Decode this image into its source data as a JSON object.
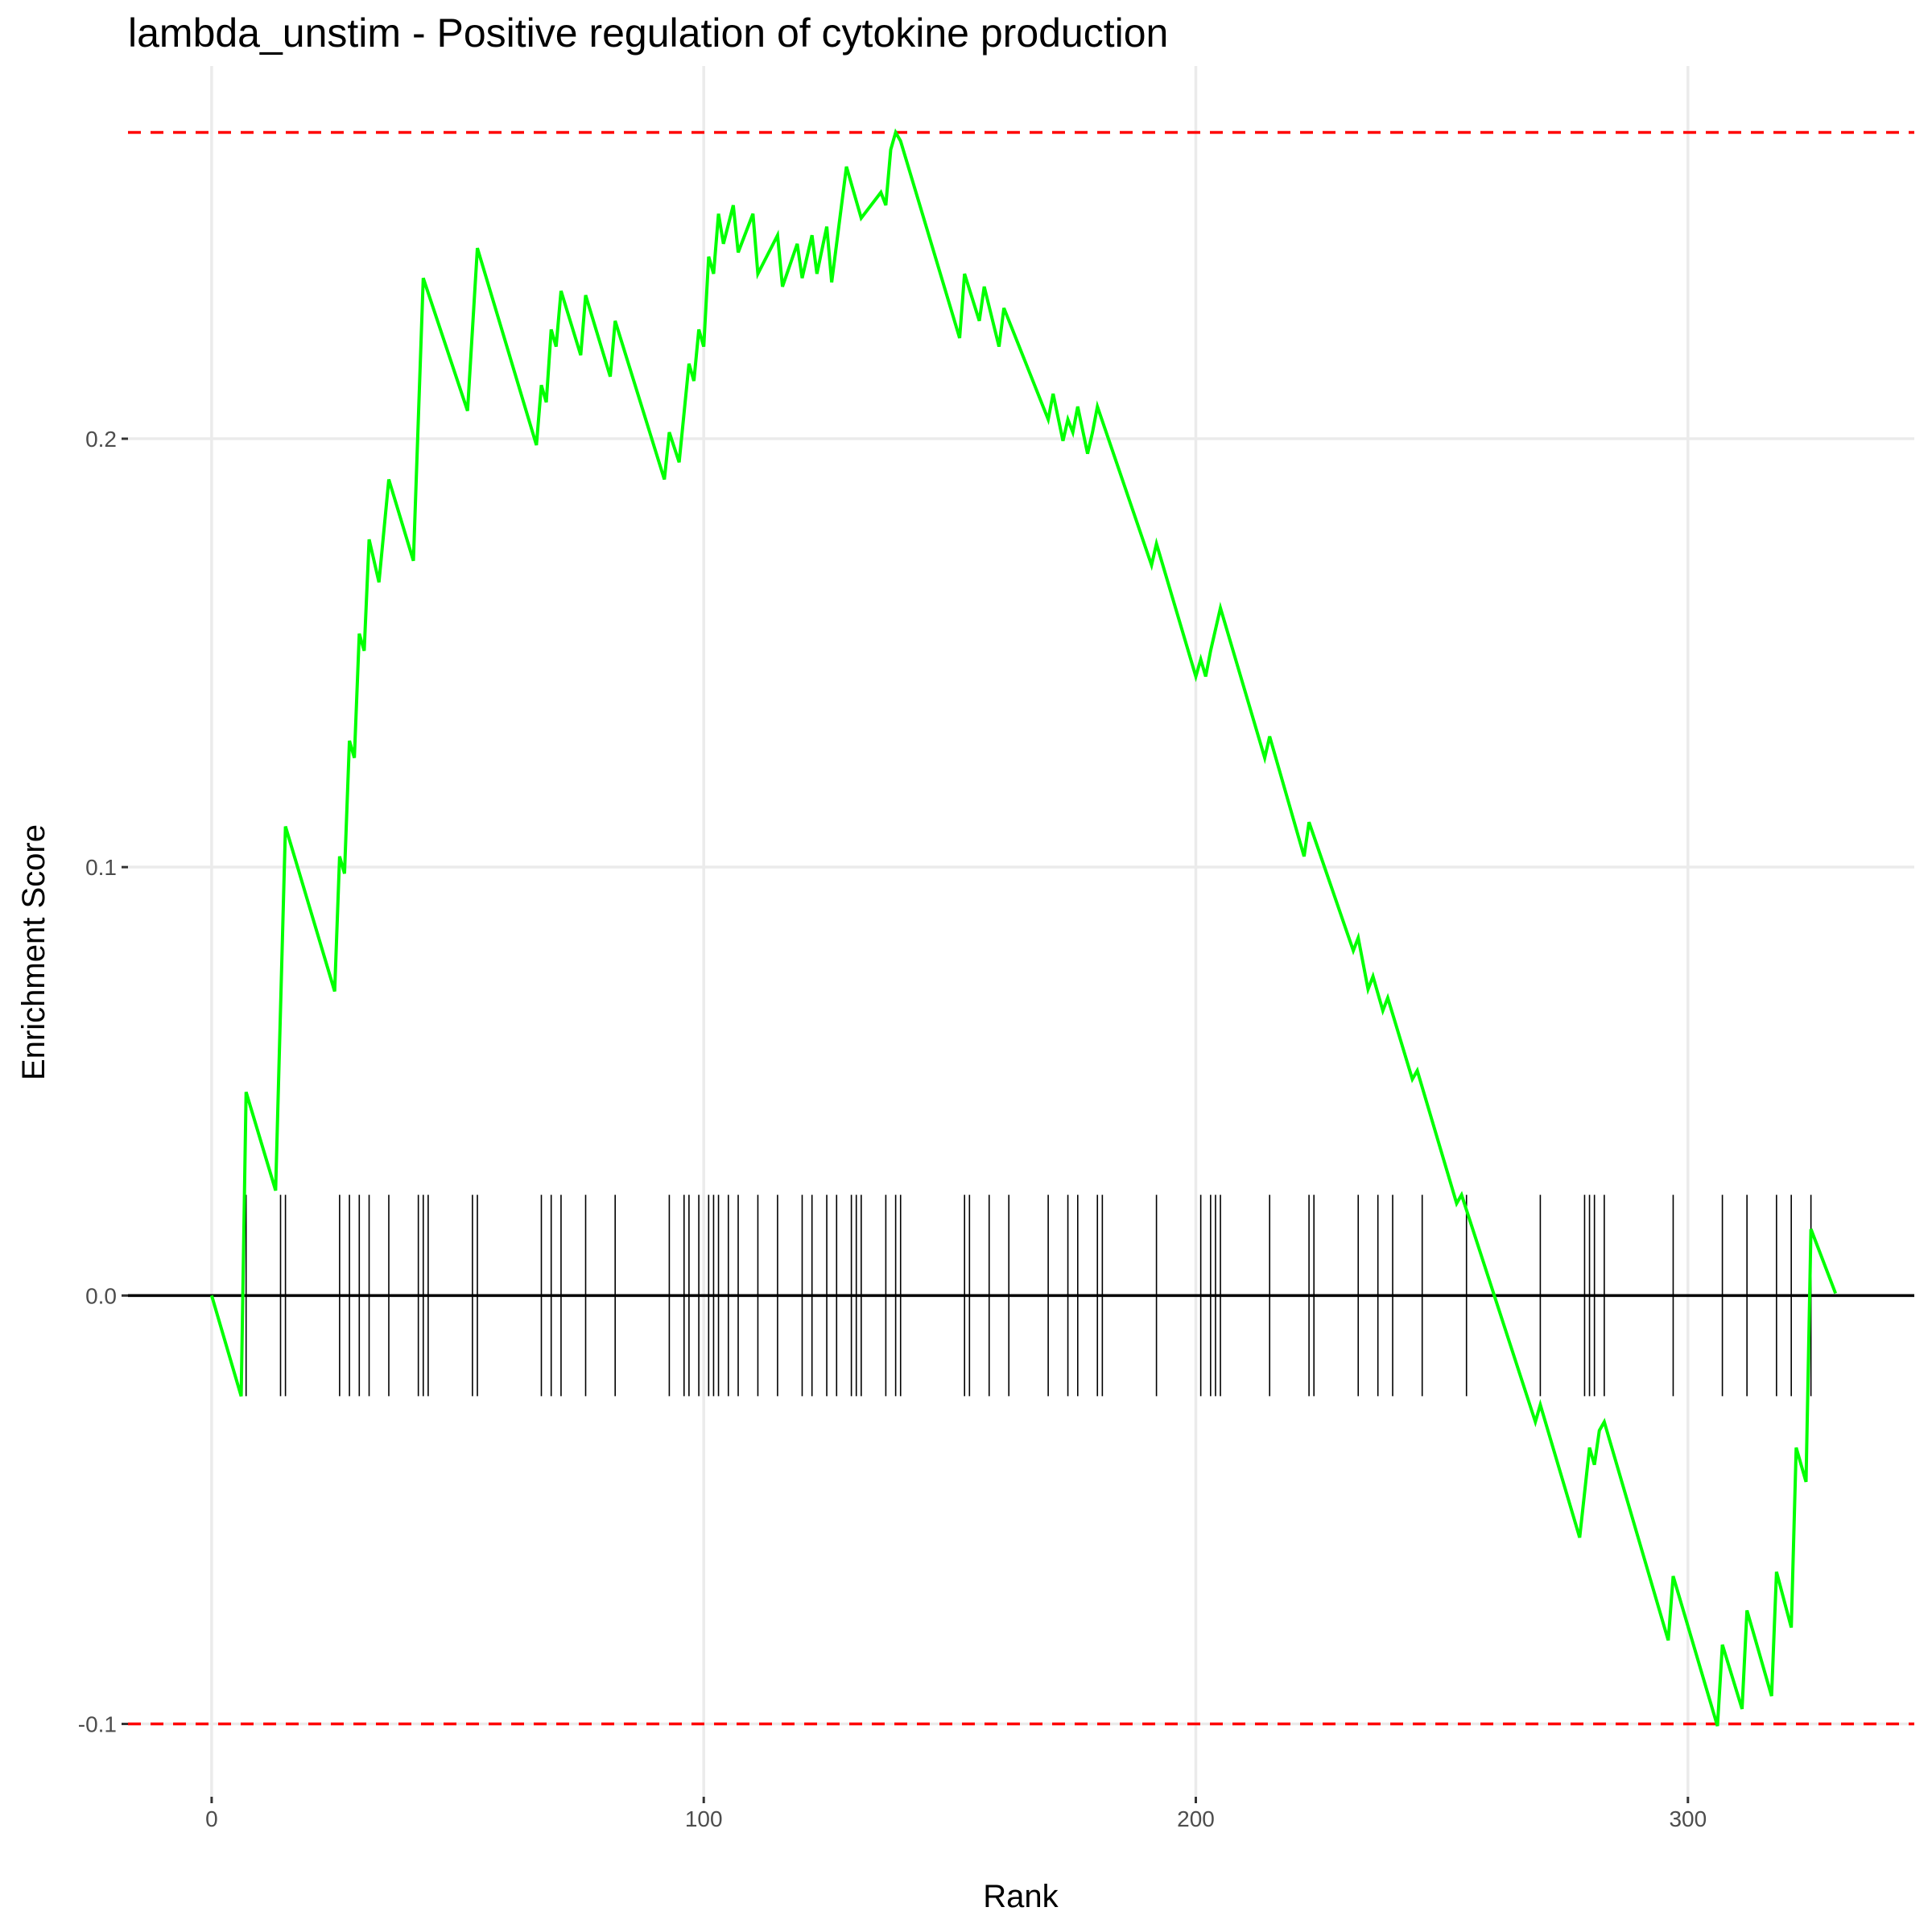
{
  "chart_data": {
    "type": "line",
    "title": "lambda_unstim - Positive regulation of cytokine production",
    "xlabel": "Rank",
    "ylabel": "Enrichment Score",
    "xlim": [
      -17,
      346
    ],
    "ylim": [
      -0.117,
      0.287
    ],
    "x_ticks": [
      0,
      100,
      200,
      300
    ],
    "x_tick_labels": [
      "0",
      "100",
      "200",
      "300"
    ],
    "y_ticks": [
      -0.1,
      0.0,
      0.1,
      0.2
    ],
    "y_tick_labels": [
      "-0.1",
      "0.0",
      "0.1",
      "0.2"
    ],
    "grid": true,
    "legend": "none",
    "colors": {
      "curve": "#00ff00",
      "bounds": "#ff0000",
      "zero_line": "#000000",
      "hits": "#000000"
    },
    "reference_lines": {
      "max": 0.2715,
      "min": -0.1,
      "zero": 0.0
    },
    "hit_tick_extent": [
      -0.0235,
      0.0235
    ],
    "series": [
      {
        "x": [
          0,
          6,
          7,
          13,
          15,
          25,
          26,
          27,
          28,
          29,
          30,
          31,
          32,
          34,
          36,
          41,
          43,
          52,
          54,
          66,
          67,
          68,
          69,
          70,
          71,
          75,
          76,
          81,
          82,
          92,
          93,
          95,
          97,
          98,
          99,
          100,
          101,
          102,
          103,
          104,
          106,
          107,
          110,
          111,
          115,
          116,
          119,
          120,
          122,
          123,
          125,
          126,
          129,
          132,
          136,
          137,
          138,
          139,
          140,
          152,
          153,
          156,
          157,
          160,
          161,
          170,
          171,
          173,
          174,
          175,
          176,
          178,
          179,
          180,
          191,
          192,
          200,
          201,
          202,
          203,
          204,
          205,
          214,
          215,
          222,
          223,
          232,
          233,
          235,
          236,
          238,
          239,
          244,
          245,
          253,
          254,
          269,
          270,
          278,
          280,
          281,
          282,
          283,
          296,
          297,
          306,
          307,
          311,
          312,
          317,
          318,
          321,
          322,
          324,
          325,
          330
        ],
        "y": [
          0.0,
          -0.0235,
          0.0475,
          0.0245,
          0.1095,
          0.071,
          0.1025,
          0.0985,
          0.1295,
          0.1255,
          0.1545,
          0.1505,
          0.1765,
          0.1665,
          0.1905,
          0.1715,
          0.2375,
          0.2065,
          0.2445,
          0.1985,
          0.2125,
          0.2085,
          0.2255,
          0.2215,
          0.2345,
          0.2195,
          0.2335,
          0.2145,
          0.2275,
          0.1905,
          0.2015,
          0.1945,
          0.2175,
          0.2135,
          0.2255,
          0.2215,
          0.2425,
          0.2385,
          0.2525,
          0.2455,
          0.2545,
          0.2435,
          0.2525,
          0.2385,
          0.2475,
          0.2355,
          0.2455,
          0.2375,
          0.2475,
          0.2385,
          0.2495,
          0.2365,
          0.2635,
          0.2515,
          0.2575,
          0.2545,
          0.2675,
          0.2715,
          0.2695,
          0.2235,
          0.2385,
          0.2275,
          0.2355,
          0.2215,
          0.2305,
          0.2045,
          0.2105,
          0.1995,
          0.2045,
          0.2015,
          0.2075,
          0.1965,
          0.2015,
          0.2075,
          0.1705,
          0.1755,
          0.1445,
          0.1485,
          0.1445,
          0.1505,
          0.1555,
          0.1605,
          0.1255,
          0.1305,
          0.1025,
          0.1105,
          0.0805,
          0.0835,
          0.0715,
          0.0745,
          0.0665,
          0.0695,
          0.0505,
          0.0525,
          0.0215,
          0.0235,
          -0.0295,
          -0.0255,
          -0.0565,
          -0.0355,
          -0.0395,
          -0.0315,
          -0.0295,
          -0.0805,
          -0.0655,
          -0.1005,
          -0.0815,
          -0.0965,
          -0.0735,
          -0.0935,
          -0.0645,
          -0.0775,
          -0.0355,
          -0.0435,
          0.0155,
          0.0005
        ]
      }
    ],
    "hits": [
      7,
      14,
      15,
      26,
      28,
      30,
      32,
      36,
      42,
      43,
      44,
      53,
      54,
      67,
      69,
      71,
      76,
      82,
      93,
      96,
      97,
      99,
      101,
      102,
      103,
      105,
      107,
      111,
      115,
      120,
      122,
      125,
      127,
      130,
      131,
      132,
      137,
      139,
      140,
      153,
      154,
      158,
      162,
      170,
      174,
      176,
      180,
      181,
      192,
      201,
      203,
      204,
      205,
      215,
      223,
      224,
      233,
      237,
      240,
      246,
      255,
      270,
      279,
      280,
      281,
      283,
      297,
      307,
      312,
      318,
      321,
      325
    ]
  }
}
